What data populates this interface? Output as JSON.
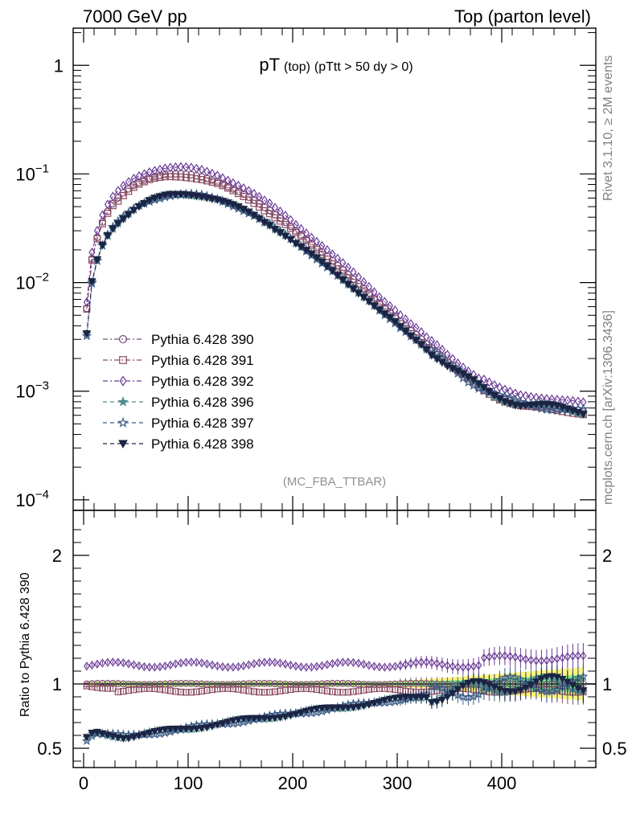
{
  "header": {
    "left": "7000 GeV pp",
    "right": "Top (parton level)"
  },
  "side_labels": {
    "rivet": "Rivet 3.1.10, ≥ 2M events",
    "mcplots": "mcplots.cern.ch [arXiv:1306.3436]"
  },
  "chart_data": [
    {
      "type": "line",
      "panel": "main",
      "title": "pT",
      "title_sub": "(top)",
      "title_cut": "(pTtt > 50 dy > 0)",
      "analysis": "(MC_FBA_TTBAR)",
      "xlim": [
        -10,
        490
      ],
      "ylim": [
        8e-05,
        2.2
      ],
      "yscale": "log",
      "yticks": [
        {
          "value": 1,
          "label": "1"
        },
        {
          "value": 0.1,
          "label": "10",
          "exp": "−1"
        },
        {
          "value": 0.01,
          "label": "10",
          "exp": "−2"
        },
        {
          "value": 0.001,
          "label": "10",
          "exp": "−3"
        },
        {
          "value": 0.0001,
          "label": "10",
          "exp": "−4"
        }
      ],
      "legend_placement": "lower-left",
      "series": [
        {
          "name": "Pythia 6.428 390",
          "marker": "circle-open",
          "color": "#7a4f7a",
          "dash": "6,3,2,3",
          "scale": 1.0,
          "ratio_base": 1.0,
          "ratio_noise": 0.01
        },
        {
          "name": "Pythia 6.428 391",
          "marker": "square-open",
          "color": "#8b4a5e",
          "dash": "6,3,2,3",
          "scale": 1.0,
          "ratio_base": 0.95,
          "ratio_noise": 0.015
        },
        {
          "name": "Pythia 6.428 392",
          "marker": "diamond-open",
          "color": "#6b3b96",
          "dash": "6,3,2,3",
          "scale": 1.0,
          "ratio_base": 1.15,
          "ratio_noise": 0.02
        },
        {
          "name": "Pythia 6.428 396",
          "marker": "star-filled",
          "color": "#4f8a8b",
          "dash": "5,4",
          "scale": 1.0,
          "ratio_base": 0.62,
          "ratio_noise": 0.03
        },
        {
          "name": "Pythia 6.428 397",
          "marker": "star-open",
          "color": "#3b5a86",
          "dash": "5,4",
          "scale": 1.0,
          "ratio_base": 0.62,
          "ratio_noise": 0.03
        },
        {
          "name": "Pythia 6.428 398",
          "marker": "triangle-down-filled",
          "color": "#1c2444",
          "dash": "5,4",
          "scale": 1.0,
          "ratio_base": 0.62,
          "ratio_noise": 0.03
        }
      ],
      "reference_curve": {
        "x": [
          3,
          8,
          13,
          18,
          23,
          28,
          33,
          38,
          43,
          48,
          53,
          58,
          63,
          68,
          73,
          78,
          83,
          88,
          93,
          98,
          103,
          108,
          113,
          118,
          123,
          128,
          133,
          138,
          143,
          148,
          153,
          158,
          163,
          168,
          173,
          178,
          183,
          188,
          193,
          198,
          203,
          208,
          213,
          218,
          223,
          228,
          233,
          238,
          243,
          248,
          253,
          258,
          263,
          268,
          273,
          278,
          283,
          288,
          293,
          298,
          303,
          308,
          313,
          318,
          323,
          328,
          333,
          338,
          343,
          348,
          353,
          358,
          363,
          368,
          373,
          378,
          383,
          388,
          393,
          398,
          403,
          408,
          413,
          418,
          423,
          428,
          433,
          438,
          443,
          448,
          453,
          458,
          463,
          468,
          473,
          478
        ],
        "y": [
          0.0058,
          0.0165,
          0.026,
          0.036,
          0.045,
          0.053,
          0.06,
          0.067,
          0.073,
          0.079,
          0.084,
          0.088,
          0.092,
          0.095,
          0.097,
          0.099,
          0.1,
          0.1,
          0.1,
          0.099,
          0.098,
          0.096,
          0.094,
          0.091,
          0.088,
          0.085,
          0.081,
          0.077,
          0.073,
          0.069,
          0.065,
          0.061,
          0.057,
          0.053,
          0.049,
          0.046,
          0.042,
          0.039,
          0.036,
          0.033,
          0.03,
          0.0276,
          0.0252,
          0.023,
          0.021,
          0.0191,
          0.0174,
          0.0158,
          0.0143,
          0.013,
          0.0118,
          0.0107,
          0.0097,
          0.0088,
          0.008,
          0.0072,
          0.0065,
          0.0059,
          0.0054,
          0.0049,
          0.0044,
          0.004,
          0.0036,
          0.0033,
          0.003,
          0.0027,
          0.0025,
          0.0023,
          0.0021,
          0.0019,
          0.00175,
          0.0016,
          0.00147,
          0.00135,
          0.00125,
          0.00115,
          0.00107,
          0.001,
          0.00094,
          0.00089,
          0.00085,
          0.00082,
          0.00079,
          0.00077,
          0.00076,
          0.00075,
          0.00074,
          0.00073,
          0.00072,
          0.00071,
          0.0007,
          0.00069,
          0.00068,
          0.00067,
          0.00066,
          0.00065
        ]
      }
    },
    {
      "type": "line",
      "panel": "ratio",
      "ylabel": "Ratio to Pythia 6.428 390",
      "xlim": [
        -10,
        490
      ],
      "ylim": [
        0.35,
        2.35
      ],
      "yticks": [
        {
          "value": 0.5,
          "label": "0.5"
        },
        {
          "value": 1,
          "label": "1"
        },
        {
          "value": 2,
          "label": "2"
        }
      ],
      "xticks": [
        {
          "value": 0,
          "label": "0"
        },
        {
          "value": 100,
          "label": "100"
        },
        {
          "value": 200,
          "label": "200"
        },
        {
          "value": 300,
          "label": "300"
        },
        {
          "value": 400,
          "label": "400"
        }
      ],
      "band_colors": {
        "inner": "#7cf27c",
        "outer": "#fcf47c"
      }
    }
  ]
}
